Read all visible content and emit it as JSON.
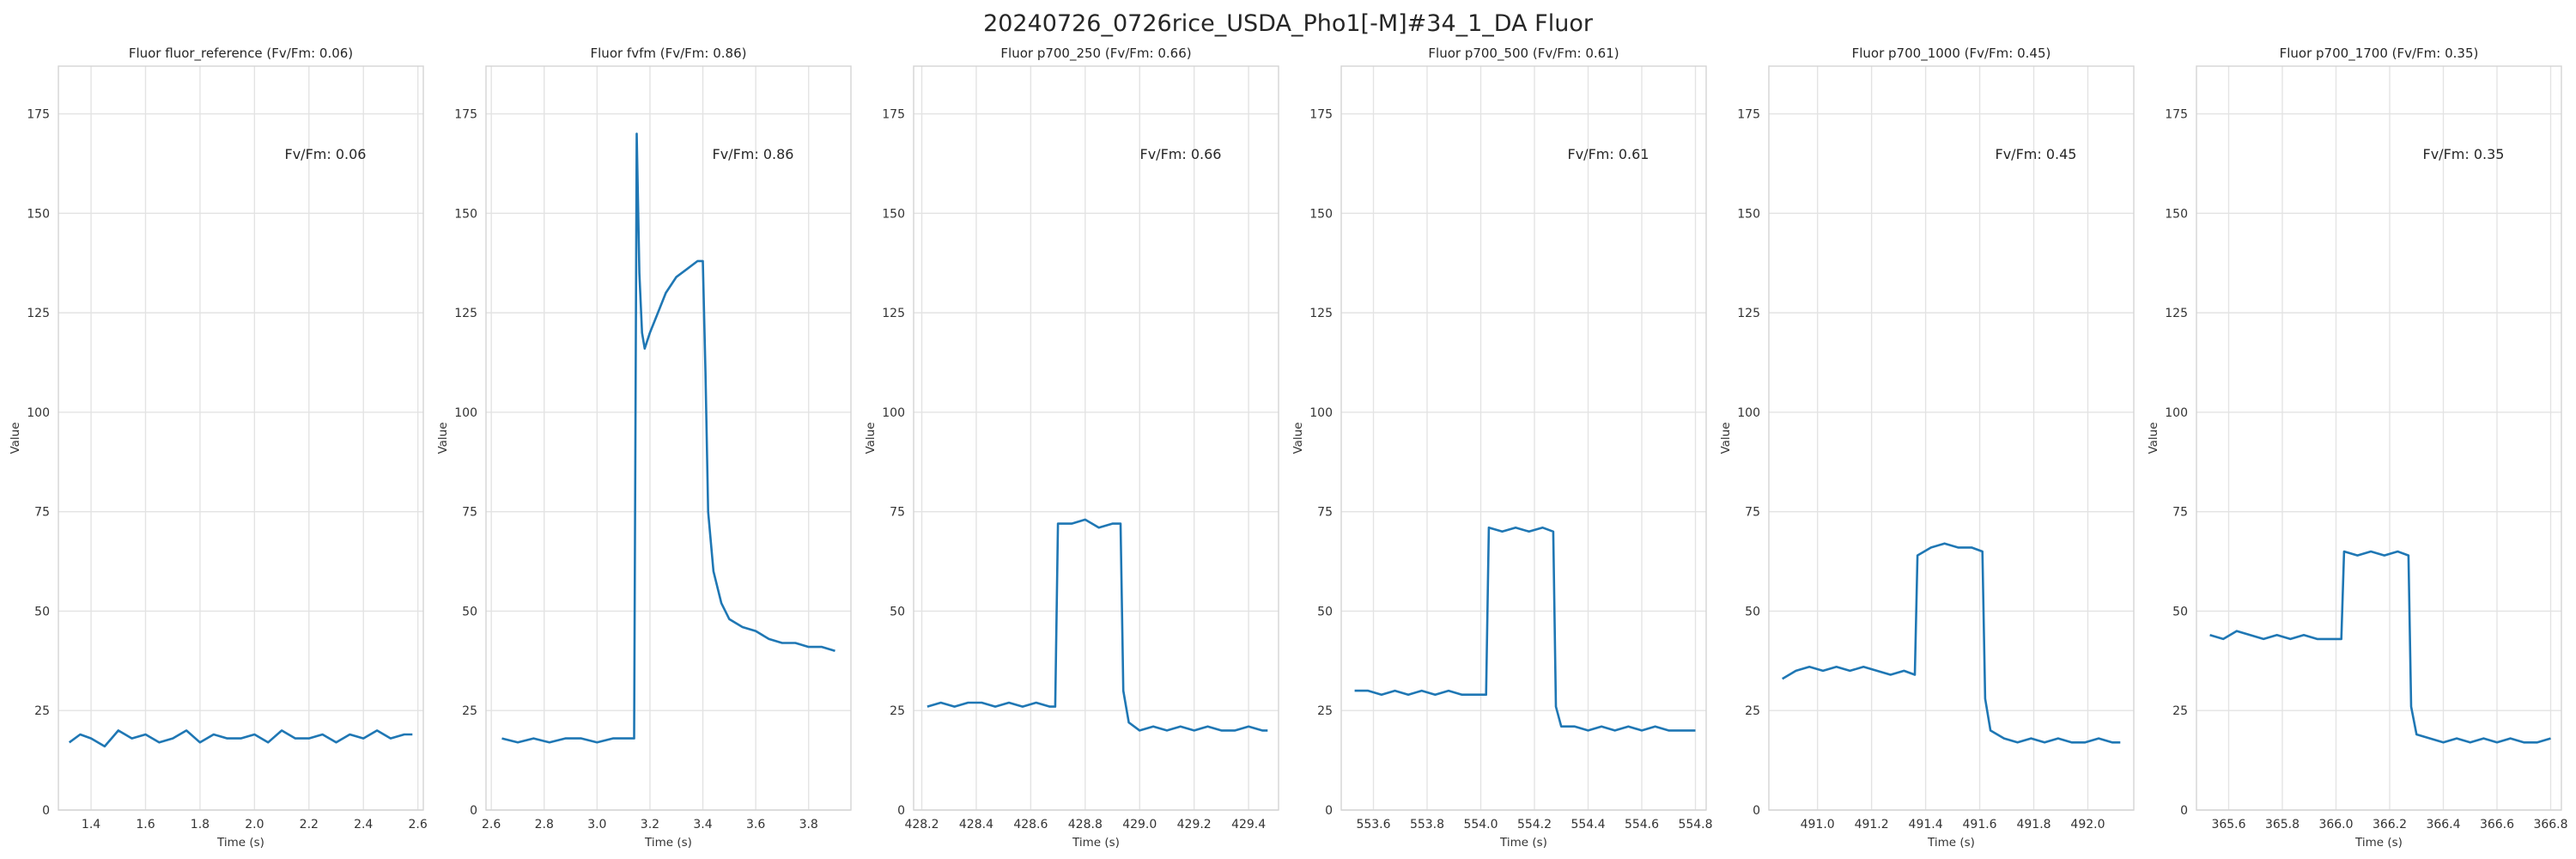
{
  "figure": {
    "title": "20240726_0726rice_USDA_Pho1[-M]#34_1_DA Fluor",
    "line_color": "#1f77b4"
  },
  "chart_data": [
    {
      "type": "line",
      "title": "Fluor fluor_reference (Fv/Fm: 0.06)",
      "xlabel": "Time (s)",
      "ylabel": "Value",
      "xlim": [
        1.28,
        2.62
      ],
      "ylim": [
        0,
        187
      ],
      "xticks": [
        1.4,
        1.6,
        1.8,
        2.0,
        2.2,
        2.4,
        2.6
      ],
      "yticks": [
        0,
        25,
        50,
        75,
        100,
        125,
        150,
        175
      ],
      "annotation": "Fv/Fm: 0.06",
      "grid": true,
      "series": [
        {
          "x": [
            1.32,
            1.36,
            1.4,
            1.45,
            1.5,
            1.55,
            1.6,
            1.65,
            1.7,
            1.75,
            1.8,
            1.85,
            1.9,
            1.95,
            2.0,
            2.05,
            2.1,
            2.15,
            2.2,
            2.25,
            2.3,
            2.35,
            2.4,
            2.45,
            2.5,
            2.55,
            2.58
          ],
          "y": [
            17,
            19,
            18,
            16,
            20,
            18,
            19,
            17,
            18,
            20,
            17,
            19,
            18,
            18,
            19,
            17,
            20,
            18,
            18,
            19,
            17,
            19,
            18,
            20,
            18,
            19,
            19
          ]
        }
      ]
    },
    {
      "type": "line",
      "title": "Fluor fvfm (Fv/Fm: 0.86)",
      "xlabel": "Time (s)",
      "ylabel": "Value",
      "xlim": [
        2.58,
        3.96
      ],
      "ylim": [
        0,
        187
      ],
      "xticks": [
        2.6,
        2.8,
        3.0,
        3.2,
        3.4,
        3.6,
        3.8
      ],
      "yticks": [
        0,
        25,
        50,
        75,
        100,
        125,
        150,
        175
      ],
      "annotation": "Fv/Fm: 0.86",
      "grid": true,
      "series": [
        {
          "x": [
            2.64,
            2.7,
            2.76,
            2.82,
            2.88,
            2.94,
            3.0,
            3.06,
            3.12,
            3.14,
            3.15,
            3.16,
            3.17,
            3.18,
            3.2,
            3.23,
            3.26,
            3.3,
            3.34,
            3.38,
            3.4,
            3.41,
            3.42,
            3.44,
            3.47,
            3.5,
            3.55,
            3.6,
            3.65,
            3.7,
            3.75,
            3.8,
            3.85,
            3.9
          ],
          "y": [
            18,
            17,
            18,
            17,
            18,
            18,
            17,
            18,
            18,
            18,
            170,
            135,
            120,
            116,
            120,
            125,
            130,
            134,
            136,
            138,
            138,
            110,
            75,
            60,
            52,
            48,
            46,
            45,
            43,
            42,
            42,
            41,
            41,
            40
          ]
        }
      ]
    },
    {
      "type": "line",
      "title": "Fluor p700_250 (Fv/Fm: 0.66)",
      "xlabel": "Time (s)",
      "ylabel": "Value",
      "xlim": [
        428.17,
        429.51
      ],
      "ylim": [
        0,
        187
      ],
      "xticks": [
        428.2,
        428.4,
        428.6,
        428.8,
        429.0,
        429.2,
        429.4
      ],
      "yticks": [
        0,
        25,
        50,
        75,
        100,
        125,
        150,
        175
      ],
      "annotation": "Fv/Fm: 0.66",
      "grid": true,
      "series": [
        {
          "x": [
            428.22,
            428.27,
            428.32,
            428.37,
            428.42,
            428.47,
            428.52,
            428.57,
            428.62,
            428.67,
            428.69,
            428.7,
            428.75,
            428.8,
            428.85,
            428.9,
            428.93,
            428.94,
            428.96,
            429.0,
            429.05,
            429.1,
            429.15,
            429.2,
            429.25,
            429.3,
            429.35,
            429.4,
            429.45,
            429.47
          ],
          "y": [
            26,
            27,
            26,
            27,
            27,
            26,
            27,
            26,
            27,
            26,
            26,
            72,
            72,
            73,
            71,
            72,
            72,
            30,
            22,
            20,
            21,
            20,
            21,
            20,
            21,
            20,
            20,
            21,
            20,
            20
          ]
        }
      ]
    },
    {
      "type": "line",
      "title": "Fluor p700_500 (Fv/Fm: 0.61)",
      "xlabel": "Time (s)",
      "ylabel": "Value",
      "xlim": [
        553.48,
        554.84
      ],
      "ylim": [
        0,
        187
      ],
      "xticks": [
        553.6,
        553.8,
        554.0,
        554.2,
        554.4,
        554.6,
        554.8
      ],
      "yticks": [
        0,
        25,
        50,
        75,
        100,
        125,
        150,
        175
      ],
      "annotation": "Fv/Fm: 0.61",
      "grid": true,
      "series": [
        {
          "x": [
            553.53,
            553.58,
            553.63,
            553.68,
            553.73,
            553.78,
            553.83,
            553.88,
            553.93,
            553.98,
            554.02,
            554.03,
            554.08,
            554.13,
            554.18,
            554.23,
            554.27,
            554.28,
            554.3,
            554.35,
            554.4,
            554.45,
            554.5,
            554.55,
            554.6,
            554.65,
            554.7,
            554.75,
            554.8
          ],
          "y": [
            30,
            30,
            29,
            30,
            29,
            30,
            29,
            30,
            29,
            29,
            29,
            71,
            70,
            71,
            70,
            71,
            70,
            26,
            21,
            21,
            20,
            21,
            20,
            21,
            20,
            21,
            20,
            20,
            20
          ]
        }
      ]
    },
    {
      "type": "line",
      "title": "Fluor p700_1000 (Fv/Fm: 0.45)",
      "xlabel": "Time (s)",
      "ylabel": "Value",
      "xlim": [
        490.82,
        492.17
      ],
      "ylim": [
        0,
        187
      ],
      "xticks": [
        491.0,
        491.2,
        491.4,
        491.6,
        491.8,
        492.0
      ],
      "yticks": [
        0,
        25,
        50,
        75,
        100,
        125,
        150,
        175
      ],
      "annotation": "Fv/Fm: 0.45",
      "grid": true,
      "series": [
        {
          "x": [
            490.87,
            490.92,
            490.97,
            491.02,
            491.07,
            491.12,
            491.17,
            491.22,
            491.27,
            491.32,
            491.36,
            491.37,
            491.42,
            491.47,
            491.52,
            491.57,
            491.61,
            491.62,
            491.64,
            491.69,
            491.74,
            491.79,
            491.84,
            491.89,
            491.94,
            491.99,
            492.04,
            492.09,
            492.12
          ],
          "y": [
            33,
            35,
            36,
            35,
            36,
            35,
            36,
            35,
            34,
            35,
            34,
            64,
            66,
            67,
            66,
            66,
            65,
            28,
            20,
            18,
            17,
            18,
            17,
            18,
            17,
            17,
            18,
            17,
            17
          ]
        }
      ]
    },
    {
      "type": "line",
      "title": "Fluor p700_1700 (Fv/Fm: 0.35)",
      "xlabel": "Time (s)",
      "ylabel": "Value",
      "xlim": [
        365.48,
        366.84
      ],
      "ylim": [
        0,
        187
      ],
      "xticks": [
        365.6,
        365.8,
        366.0,
        366.2,
        366.4,
        366.6,
        366.8
      ],
      "yticks": [
        0,
        25,
        50,
        75,
        100,
        125,
        150,
        175
      ],
      "annotation": "Fv/Fm: 0.35",
      "grid": true,
      "series": [
        {
          "x": [
            365.53,
            365.58,
            365.63,
            365.68,
            365.73,
            365.78,
            365.83,
            365.88,
            365.93,
            365.98,
            366.02,
            366.03,
            366.08,
            366.13,
            366.18,
            366.23,
            366.27,
            366.28,
            366.3,
            366.35,
            366.4,
            366.45,
            366.5,
            366.55,
            366.6,
            366.65,
            366.7,
            366.75,
            366.8
          ],
          "y": [
            44,
            43,
            45,
            44,
            43,
            44,
            43,
            44,
            43,
            43,
            43,
            65,
            64,
            65,
            64,
            65,
            64,
            26,
            19,
            18,
            17,
            18,
            17,
            18,
            17,
            18,
            17,
            17,
            18
          ]
        }
      ]
    }
  ]
}
